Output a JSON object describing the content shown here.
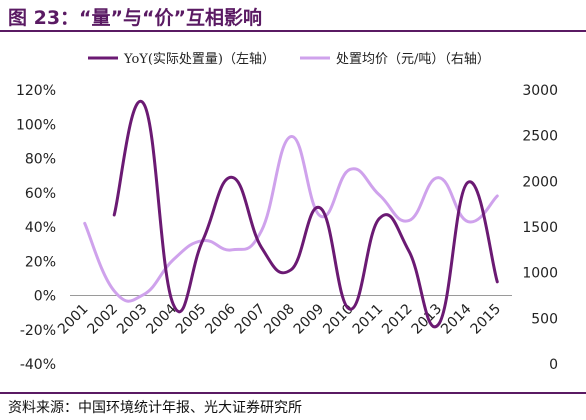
{
  "header": {
    "title": "图 23：“量”与“价”互相影响"
  },
  "footer": {
    "source": "资料来源：中国环境统计年报、光大证券研究所"
  },
  "chart_data": {
    "type": "line",
    "title": "图 23：“量”与“价”互相影响",
    "categories": [
      "2001",
      "2002",
      "2003",
      "2004",
      "2005",
      "2006",
      "2007",
      "2008",
      "2009",
      "2010",
      "2011",
      "2012",
      "2013",
      "2014",
      "2015"
    ],
    "left_axis": {
      "ticks": [
        "120%",
        "100%",
        "80%",
        "60%",
        "40%",
        "20%",
        "0%",
        "-20%",
        "-40%"
      ],
      "ylim": [
        -40,
        120
      ],
      "unit": "%"
    },
    "right_axis": {
      "ticks": [
        "3000",
        "2500",
        "2000",
        "1500",
        "1000",
        "500",
        "0"
      ],
      "ylim": [
        0,
        3000
      ]
    },
    "legend_position": "top",
    "series": [
      {
        "name": "YoY(实际处置量)（左轴）",
        "axis": "left",
        "color": "#6b1a73",
        "values": [
          null,
          47,
          112,
          -5,
          32,
          69,
          28,
          15,
          51,
          -8,
          45,
          26,
          -17,
          66,
          8
        ]
      },
      {
        "name": "处置均价（元/吨）（右轴）",
        "axis": "right",
        "color": "#cfa2ec",
        "values": [
          1540,
          800,
          760,
          1140,
          1350,
          1250,
          1460,
          2490,
          1620,
          2130,
          1850,
          1570,
          2040,
          1560,
          1840
        ]
      }
    ]
  }
}
